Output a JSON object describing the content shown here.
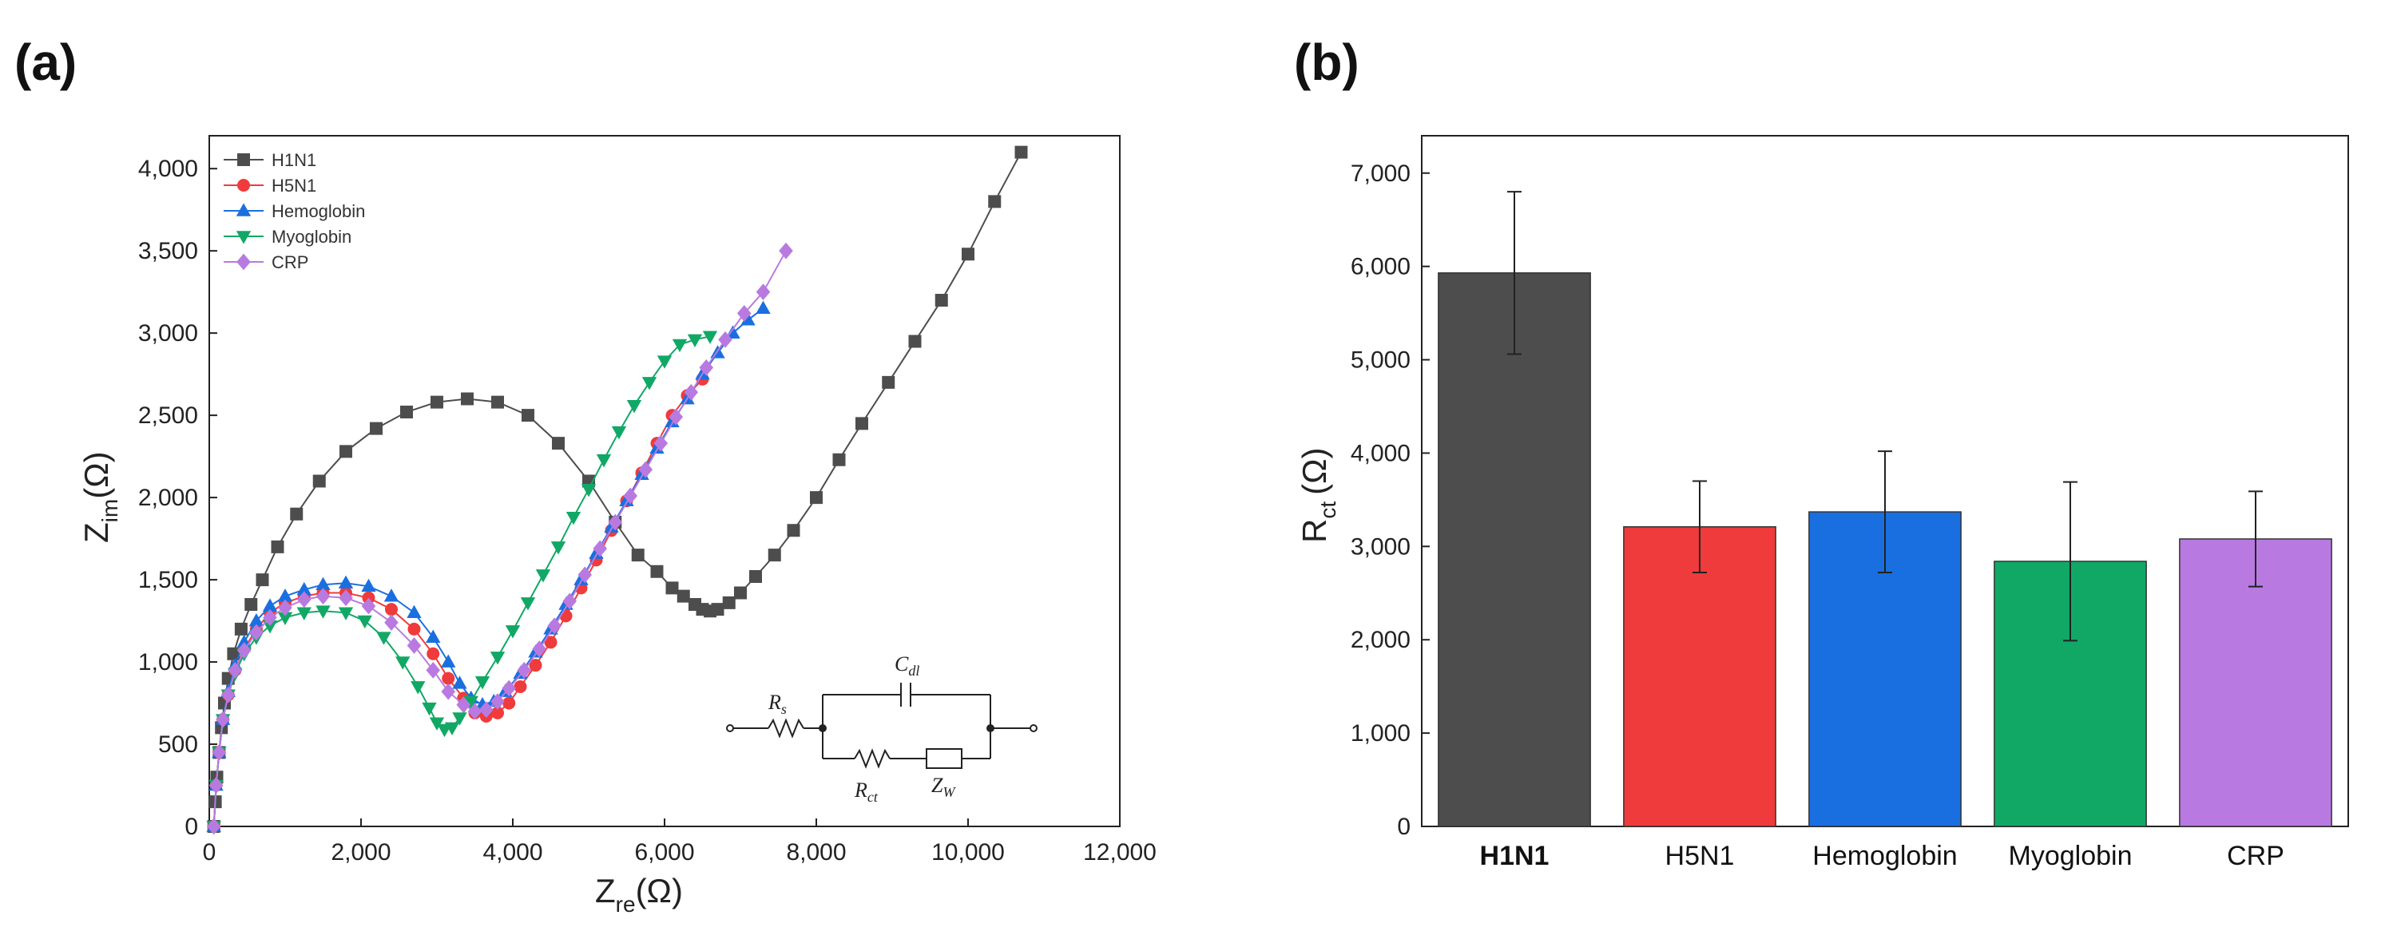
{
  "panels": {
    "a_label": "(a)",
    "b_label": "(b)"
  },
  "colors": {
    "H1N1": "#4d4d4d",
    "H5N1": "#ef3b3b",
    "Hemoglobin": "#1a6fe0",
    "Myoglobin": "#11a866",
    "CRP": "#b87ae0"
  },
  "chart_data": [
    {
      "type": "scatter",
      "title": "",
      "xlabel_main": "Z",
      "xlabel_sub": "re",
      "xlabel_unit": "(Ω)",
      "ylabel_main": "Z",
      "ylabel_sub": "im",
      "ylabel_unit": "(Ω)",
      "xlim": [
        0,
        12000
      ],
      "ylim": [
        0,
        4200
      ],
      "xticks": [
        0,
        2000,
        4000,
        6000,
        8000,
        10000,
        12000
      ],
      "xtick_labels": [
        "0",
        "2,000",
        "4,000",
        "6,000",
        "8,000",
        "10,000",
        "12,000"
      ],
      "yticks": [
        0,
        500,
        1000,
        1500,
        2000,
        2500,
        3000,
        3500,
        4000
      ],
      "ytick_labels": [
        "0",
        "500",
        "1,000",
        "1,500",
        "2,000",
        "2,500",
        "3,000",
        "3,500",
        "4,000"
      ],
      "legend_position": "top-left",
      "series": [
        {
          "name": "H1N1",
          "marker": "square",
          "color": "#4d4d4d",
          "x": [
            60,
            80,
            100,
            130,
            160,
            200,
            250,
            320,
            420,
            550,
            700,
            900,
            1150,
            1450,
            1800,
            2200,
            2600,
            3000,
            3400,
            3800,
            4200,
            4600,
            5000,
            5350,
            5650,
            5900,
            6100,
            6250,
            6400,
            6500,
            6600,
            6700,
            6850,
            7000,
            7200,
            7450,
            7700,
            8000,
            8300,
            8600,
            8950,
            9300,
            9650,
            10000,
            10350,
            10700
          ],
          "y": [
            0,
            150,
            300,
            450,
            600,
            750,
            900,
            1050,
            1200,
            1350,
            1500,
            1700,
            1900,
            2100,
            2280,
            2420,
            2520,
            2580,
            2600,
            2580,
            2500,
            2330,
            2100,
            1850,
            1650,
            1550,
            1450,
            1400,
            1350,
            1320,
            1310,
            1320,
            1360,
            1420,
            1520,
            1650,
            1800,
            2000,
            2230,
            2450,
            2700,
            2950,
            3200,
            3480,
            3800,
            4100
          ]
        },
        {
          "name": "H5N1",
          "marker": "circle",
          "color": "#ef3b3b",
          "x": [
            60,
            90,
            130,
            180,
            250,
            340,
            460,
            620,
            800,
            1000,
            1250,
            1500,
            1800,
            2100,
            2400,
            2700,
            2950,
            3150,
            3350,
            3500,
            3650,
            3800,
            3950,
            4100,
            4300,
            4500,
            4700,
            4900,
            5100,
            5300,
            5500,
            5700,
            5900,
            6100,
            6300,
            6500
          ],
          "y": [
            0,
            250,
            450,
            650,
            800,
            950,
            1080,
            1200,
            1300,
            1360,
            1400,
            1420,
            1420,
            1390,
            1320,
            1200,
            1050,
            900,
            780,
            690,
            670,
            690,
            750,
            850,
            980,
            1120,
            1280,
            1450,
            1620,
            1800,
            1980,
            2150,
            2330,
            2500,
            2620,
            2720
          ]
        },
        {
          "name": "Hemoglobin",
          "marker": "triangle-up",
          "color": "#1a6fe0",
          "x": [
            60,
            90,
            130,
            180,
            250,
            340,
            460,
            620,
            800,
            1000,
            1250,
            1500,
            1800,
            2100,
            2400,
            2700,
            2950,
            3150,
            3300,
            3450,
            3600,
            3750,
            3900,
            4100,
            4300,
            4500,
            4700,
            4900,
            5100,
            5300,
            5500,
            5700,
            5900,
            6100,
            6300,
            6500,
            6700,
            6900,
            7100,
            7300
          ],
          "y": [
            0,
            250,
            450,
            650,
            820,
            980,
            1120,
            1250,
            1340,
            1400,
            1440,
            1470,
            1480,
            1460,
            1400,
            1300,
            1150,
            1000,
            870,
            780,
            740,
            760,
            820,
            930,
            1060,
            1200,
            1350,
            1500,
            1660,
            1820,
            1980,
            2140,
            2300,
            2460,
            2600,
            2750,
            2880,
            3000,
            3080,
            3150
          ]
        },
        {
          "name": "Myoglobin",
          "marker": "triangle-down",
          "color": "#11a866",
          "x": [
            60,
            90,
            130,
            180,
            250,
            340,
            460,
            620,
            800,
            1000,
            1250,
            1500,
            1800,
            2050,
            2300,
            2550,
            2750,
            2900,
            3000,
            3100,
            3200,
            3300,
            3450,
            3600,
            3800,
            4000,
            4200,
            4400,
            4600,
            4800,
            5000,
            5200,
            5400,
            5600,
            5800,
            6000,
            6200,
            6400,
            6600
          ],
          "y": [
            0,
            250,
            450,
            650,
            800,
            930,
            1050,
            1150,
            1220,
            1270,
            1300,
            1310,
            1300,
            1250,
            1150,
            1000,
            850,
            720,
            630,
            590,
            600,
            660,
            760,
            880,
            1030,
            1190,
            1360,
            1530,
            1700,
            1880,
            2050,
            2230,
            2400,
            2560,
            2700,
            2830,
            2930,
            2960,
            2980
          ]
        },
        {
          "name": "CRP",
          "marker": "diamond",
          "color": "#b87ae0",
          "x": [
            60,
            90,
            130,
            180,
            250,
            340,
            460,
            620,
            800,
            1000,
            1250,
            1500,
            1800,
            2100,
            2400,
            2700,
            2950,
            3150,
            3350,
            3500,
            3650,
            3800,
            3950,
            4150,
            4350,
            4550,
            4750,
            4950,
            5150,
            5350,
            5550,
            5750,
            5950,
            6150,
            6350,
            6550,
            6800,
            7050,
            7300,
            7600
          ],
          "y": [
            0,
            250,
            450,
            650,
            800,
            950,
            1070,
            1180,
            1270,
            1330,
            1380,
            1400,
            1390,
            1340,
            1240,
            1100,
            950,
            820,
            740,
            700,
            710,
            760,
            840,
            950,
            1080,
            1220,
            1370,
            1530,
            1690,
            1850,
            2010,
            2170,
            2330,
            2490,
            2640,
            2790,
            2960,
            3120,
            3250,
            3500
          ]
        }
      ],
      "inset_circuit": {
        "labels": [
          "R",
          "s",
          "C",
          "dl",
          "R",
          "ct",
          "Z",
          "W"
        ]
      }
    },
    {
      "type": "bar",
      "title": "",
      "ylabel_main": "R",
      "ylabel_sub": "ct",
      "ylabel_unit": "(Ω)",
      "ylim": [
        0,
        7400
      ],
      "yticks": [
        0,
        1000,
        2000,
        3000,
        4000,
        5000,
        6000,
        7000
      ],
      "ytick_labels": [
        "0",
        "1,000",
        "2,000",
        "3,000",
        "4,000",
        "5,000",
        "6,000",
        "7,000"
      ],
      "categories": [
        "H1N1",
        "H5N1",
        "Hemoglobin",
        "Myoglobin",
        "CRP"
      ],
      "values": [
        5930,
        3210,
        3370,
        2840,
        3080
      ],
      "errors": [
        870,
        490,
        650,
        850,
        510
      ],
      "colors": [
        "#4d4d4d",
        "#ef3b3b",
        "#1a6fe0",
        "#11a866",
        "#b87ae0"
      ]
    }
  ]
}
